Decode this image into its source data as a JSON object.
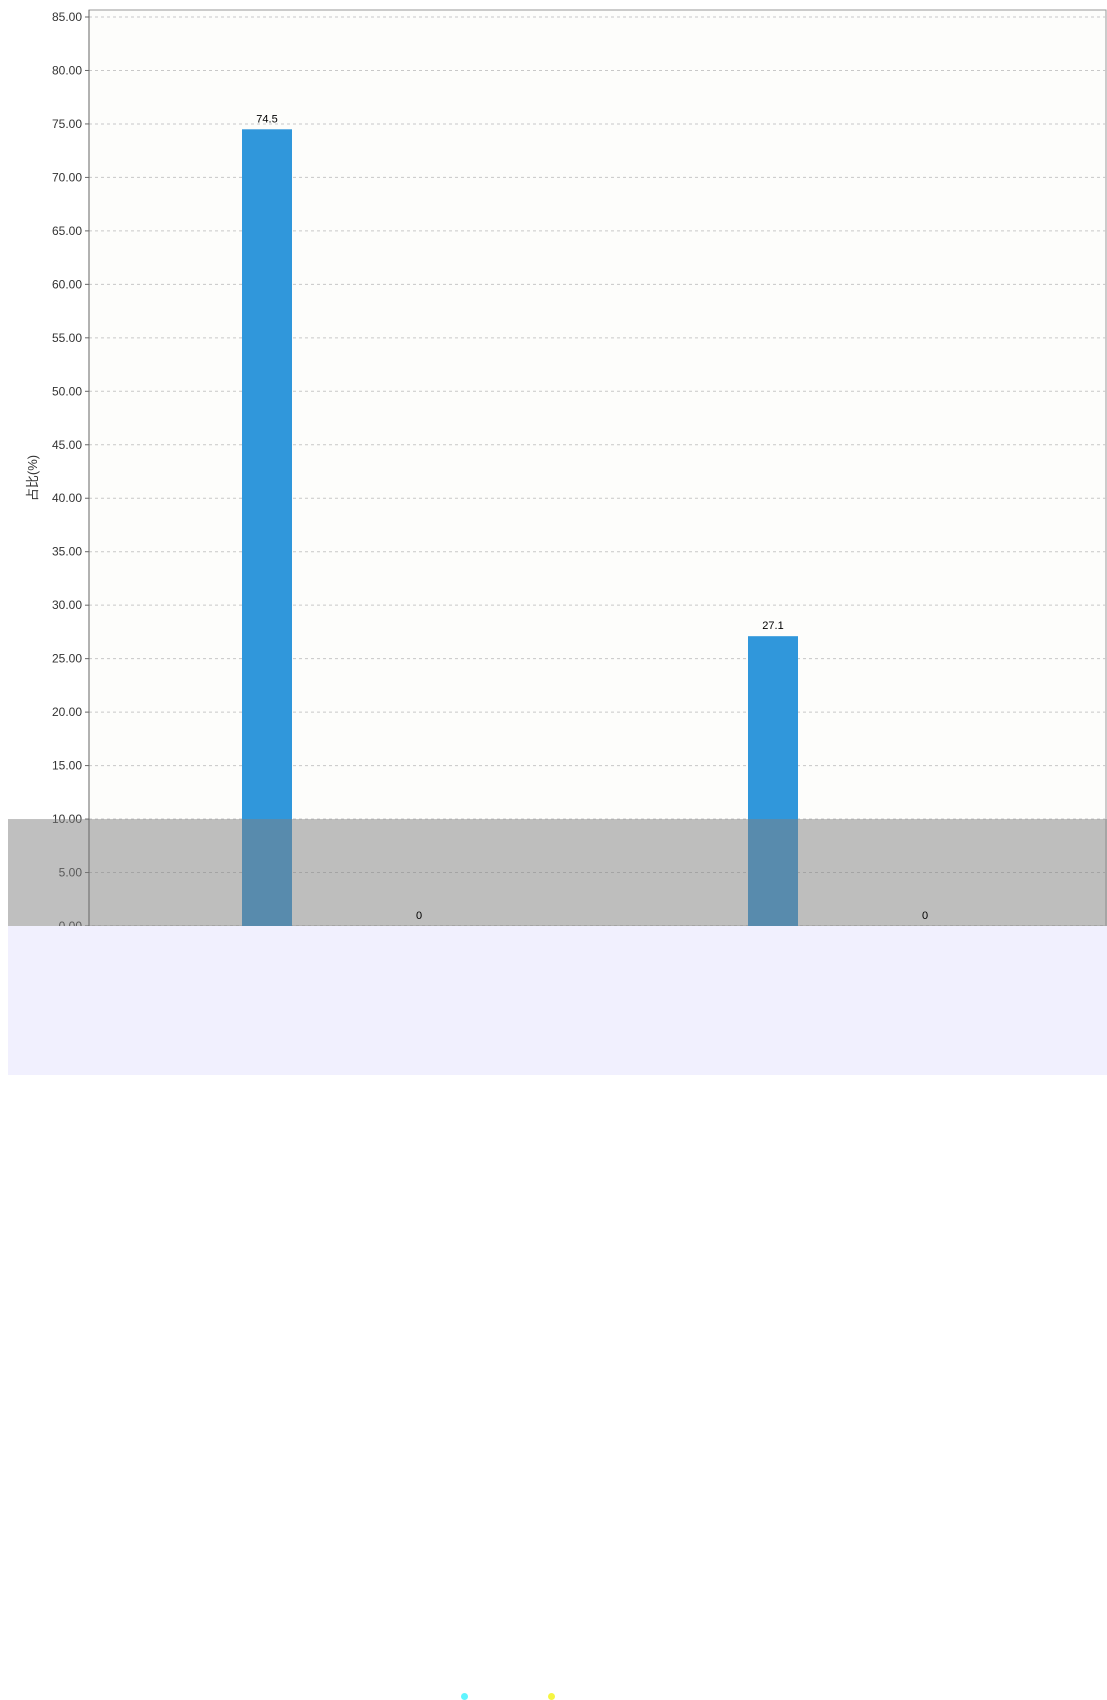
{
  "chart_data": {
    "type": "bar",
    "ylabel": "占比(%)",
    "ylim": [
      0,
      85
    ],
    "yticks": [
      "0.00",
      "5.00",
      "10.00",
      "15.00",
      "20.00",
      "25.00",
      "30.00",
      "35.00",
      "40.00",
      "45.00",
      "50.00",
      "55.00",
      "60.00",
      "65.00",
      "70.00",
      "75.00",
      "80.00",
      "85.00"
    ],
    "grid": true,
    "series": [
      {
        "color": "#3097db",
        "values": [
          74.5,
          27.1
        ]
      },
      {
        "color": "#5ec8f0",
        "values": [
          0,
          0
        ]
      }
    ],
    "bar_labels": [
      [
        "74.5",
        "27.1"
      ],
      [
        "0",
        "0"
      ]
    ],
    "overlay": {
      "from": 0,
      "to": 10,
      "color": "#808080"
    }
  },
  "legend": {
    "colors": [
      "#5ff5ff",
      "#f5f542"
    ]
  }
}
